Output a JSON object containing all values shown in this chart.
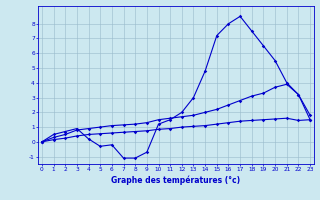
{
  "xlabel": "Graphe des températures (°c)",
  "x_values": [
    0,
    1,
    2,
    3,
    4,
    5,
    6,
    7,
    8,
    9,
    10,
    11,
    12,
    13,
    14,
    15,
    16,
    17,
    18,
    19,
    20,
    21,
    22,
    23
  ],
  "line1": [
    0.0,
    0.5,
    0.7,
    0.9,
    0.2,
    -0.3,
    -0.2,
    -1.1,
    -1.1,
    -0.7,
    1.2,
    1.5,
    2.0,
    3.0,
    4.8,
    7.2,
    8.0,
    8.5,
    7.5,
    6.5,
    5.5,
    4.0,
    3.2,
    1.8
  ],
  "line2": [
    0.0,
    0.3,
    0.5,
    0.8,
    0.9,
    1.0,
    1.1,
    1.15,
    1.2,
    1.3,
    1.5,
    1.6,
    1.7,
    1.8,
    2.0,
    2.2,
    2.5,
    2.8,
    3.1,
    3.3,
    3.7,
    3.9,
    3.2,
    1.5
  ],
  "line3": [
    0.0,
    0.15,
    0.25,
    0.4,
    0.5,
    0.55,
    0.6,
    0.65,
    0.7,
    0.75,
    0.85,
    0.9,
    1.0,
    1.05,
    1.1,
    1.2,
    1.3,
    1.4,
    1.45,
    1.5,
    1.55,
    1.6,
    1.45,
    1.5
  ],
  "bg_color": "#cce8f0",
  "grid_color": "#99bbcc",
  "line_color": "#0000cc",
  "ylim": [
    -1.5,
    9.2
  ],
  "xlim": [
    -0.3,
    23.3
  ],
  "yticks": [
    -1,
    0,
    1,
    2,
    3,
    4,
    5,
    6,
    7,
    8
  ],
  "marker": "D",
  "marker_size": 1.8,
  "linewidth": 0.8,
  "tick_fontsize": 4.2,
  "xlabel_fontsize": 5.5
}
